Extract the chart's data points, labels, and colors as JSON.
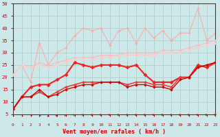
{
  "xlabel": "Vent moyen/en rafales ( km/h )",
  "background_color": "#cce8e8",
  "grid_color": "#aacccc",
  "xmin": 0,
  "xmax": 23,
  "ymin": 5,
  "ymax": 50,
  "yticks": [
    5,
    10,
    15,
    20,
    25,
    30,
    35,
    40,
    45,
    50
  ],
  "x": [
    0,
    1,
    2,
    3,
    4,
    5,
    6,
    7,
    8,
    9,
    10,
    11,
    12,
    13,
    14,
    15,
    16,
    17,
    18,
    19,
    20,
    21,
    22,
    23
  ],
  "y_volatile": [
    21,
    25,
    18,
    34,
    25,
    30,
    32,
    37,
    40,
    39,
    40,
    33,
    39,
    40,
    34,
    40,
    36,
    39,
    35,
    38,
    38,
    48,
    35,
    38
  ],
  "y_upper2": [
    21,
    25,
    24,
    26,
    25,
    26,
    27,
    28,
    28,
    28,
    29,
    29,
    29,
    30,
    30,
    30,
    30,
    31,
    31,
    31,
    32,
    33,
    34,
    35
  ],
  "y_upper1": [
    21,
    25,
    24,
    25,
    24,
    25,
    26,
    27,
    27,
    27,
    28,
    28,
    29,
    29,
    29,
    29,
    29,
    30,
    30,
    30,
    31,
    32,
    33,
    34
  ],
  "y_mid": [
    7,
    12,
    16,
    17,
    17,
    19,
    21,
    26,
    25,
    24,
    25,
    25,
    25,
    24,
    25,
    21,
    18,
    18,
    18,
    20,
    20,
    25,
    24,
    26
  ],
  "y_lower2": [
    7,
    12,
    12,
    14,
    12,
    14,
    16,
    17,
    18,
    18,
    18,
    18,
    18,
    17,
    18,
    18,
    17,
    17,
    16,
    20,
    20,
    24,
    25,
    26
  ],
  "y_lower1": [
    7,
    12,
    12,
    15,
    12,
    13,
    15,
    16,
    17,
    17,
    18,
    18,
    18,
    16,
    17,
    17,
    16,
    16,
    15,
    19,
    20,
    24,
    25,
    26
  ],
  "color_volatile": "#ffaaaa",
  "color_upper2": "#ffbbbb",
  "color_upper1": "#ffcccc",
  "color_mid": "#ee2222",
  "color_lower2": "#dd4444",
  "color_lower1": "#cc0000",
  "arrow_angles_deg": [
    210,
    210,
    200,
    190,
    180,
    170,
    155,
    135,
    115,
    100,
    90,
    90,
    105,
    90,
    90,
    90,
    90,
    90,
    90,
    90,
    90,
    90,
    100,
    110
  ]
}
